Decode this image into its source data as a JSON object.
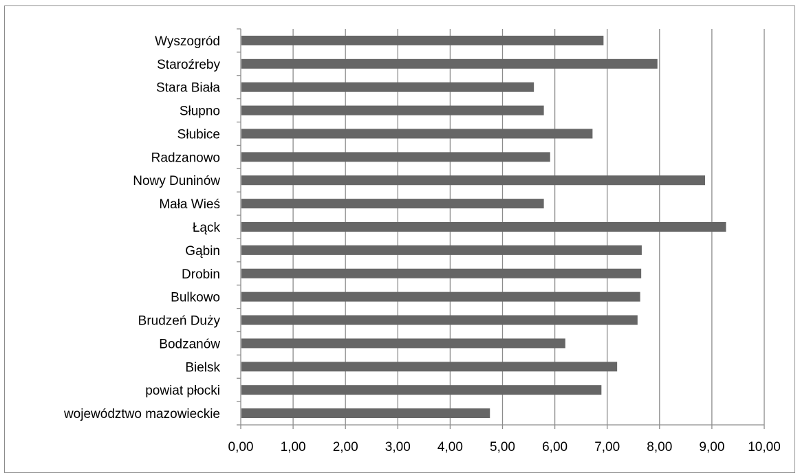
{
  "chart_data": {
    "type": "bar",
    "orientation": "horizontal",
    "title": "",
    "xlabel": "",
    "ylabel": "",
    "xlim": [
      0,
      10
    ],
    "grid": true,
    "categories": [
      "Wyszogród",
      "Staroźreby",
      "Stara Biała",
      "Słupno",
      "Słubice",
      "Radzanowo",
      "Nowy Duninów",
      "Mała Wieś",
      "Łąck",
      "Gąbin",
      "Drobin",
      "Bulkowo",
      "Brudzeń Duży",
      "Bodzanów",
      "Bielsk",
      "powiat płocki",
      "województwo mazowieckie"
    ],
    "values": [
      6.93,
      7.96,
      5.6,
      5.79,
      6.72,
      5.91,
      8.87,
      5.79,
      9.27,
      7.66,
      7.65,
      7.63,
      7.58,
      6.2,
      7.19,
      6.89,
      4.76
    ],
    "xticks": [
      "0,00",
      "1,00",
      "2,00",
      "3,00",
      "4,00",
      "5,00",
      "6,00",
      "7,00",
      "8,00",
      "9,00",
      "10,00"
    ],
    "colors": {
      "bar": "#666666",
      "grid": "#8c8c8c",
      "axis": "#8c8c8c"
    }
  }
}
